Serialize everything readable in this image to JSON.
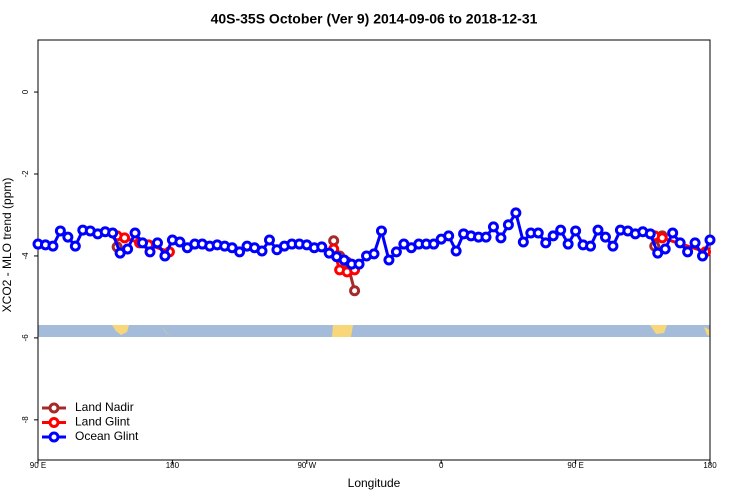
{
  "chart_data": {
    "type": "line",
    "title": "40S-35S October (Ver 9)   2014-09-06 to 2018-12-31",
    "xlabel": "Longitude",
    "ylabel": "XCO2 - MLO trend (ppm)",
    "xlim": [
      90,
      540
    ],
    "ylim": [
      -8.98,
      1.27
    ],
    "xticks": [
      {
        "value": 90,
        "label": "90 E"
      },
      {
        "value": 180,
        "label": "180"
      },
      {
        "value": 270,
        "label": "90 W"
      },
      {
        "value": 360,
        "label": "0"
      },
      {
        "value": 450,
        "label": "90 E"
      },
      {
        "value": 540,
        "label": "180"
      }
    ],
    "yticks": [
      0,
      -2,
      -4,
      -6,
      -8
    ],
    "legend": "bottomleft",
    "series": [
      {
        "name": "Land Nadir",
        "color": "#a52a2a",
        "x": [
          143,
          200,
          288,
          292,
          297,
          302,
          400,
          503,
          508
        ],
        "values": [
          -3.78,
          null,
          -3.63,
          -4.0,
          -4.15,
          -4.85,
          null,
          -3.76,
          -3.51
        ]
      },
      {
        "name": "Land Glint",
        "color": "#ff0000",
        "x": [
          143,
          148,
          158,
          164,
          178,
          230,
          288,
          292,
          297,
          302,
          400,
          503,
          508,
          537
        ],
        "values": [
          -3.51,
          -3.56,
          -3.68,
          -3.73,
          -3.9,
          null,
          -3.83,
          -4.34,
          -4.39,
          -4.34,
          null,
          -3.51,
          -3.56,
          -3.9
        ]
      },
      {
        "name": "Ocean Glint",
        "color": "#0000ff",
        "x": [
          90,
          95,
          100,
          105,
          110,
          115,
          120,
          125,
          130,
          135,
          140,
          145,
          150,
          155,
          160,
          165,
          170,
          175,
          180,
          185,
          190,
          195,
          200,
          205,
          210,
          215,
          220,
          225,
          230,
          235,
          240,
          245,
          250,
          255,
          260,
          265,
          270,
          275,
          280,
          285,
          290,
          295,
          300,
          305,
          310,
          315,
          320,
          325,
          330,
          335,
          340,
          345,
          350,
          355,
          360,
          365,
          370,
          375,
          380,
          385,
          390,
          395,
          400,
          405,
          410,
          415,
          420,
          425,
          430,
          435,
          440,
          445,
          450,
          455,
          460,
          465,
          470,
          475,
          480,
          485,
          490,
          495,
          500,
          505,
          510,
          515,
          520,
          525,
          530,
          535,
          540
        ],
        "values": [
          -3.71,
          -3.73,
          -3.76,
          -3.39,
          -3.54,
          -3.76,
          -3.37,
          -3.39,
          -3.46,
          -3.41,
          -3.44,
          -3.93,
          -3.83,
          -3.44,
          -3.68,
          -3.9,
          -3.68,
          -4.0,
          -3.61,
          -3.66,
          -3.8,
          -3.71,
          -3.71,
          -3.76,
          -3.73,
          -3.76,
          -3.8,
          -3.9,
          -3.76,
          -3.8,
          -3.88,
          -3.61,
          -3.85,
          -3.76,
          -3.71,
          -3.71,
          -3.73,
          -3.8,
          -3.78,
          -3.93,
          -4.02,
          -4.1,
          -4.2,
          -4.2,
          -4.0,
          -3.95,
          -3.39,
          -4.1,
          -3.9,
          -3.71,
          -3.8,
          -3.71,
          -3.71,
          -3.71,
          -3.59,
          -3.51,
          -3.88,
          -3.46,
          -3.51,
          -3.54,
          -3.54,
          -3.29,
          -3.56,
          -3.24,
          -2.95,
          -3.66,
          -3.44,
          -3.44,
          -3.68,
          -3.51,
          -3.37,
          -3.71,
          -3.39,
          -3.73,
          -3.76,
          -3.37,
          -3.54,
          -3.76,
          -3.37,
          -3.39,
          -3.46,
          -3.41,
          -3.46,
          -3.93,
          -3.83,
          -3.44,
          -3.68,
          -3.9,
          -3.68,
          -4.0,
          -3.61
        ]
      }
    ]
  }
}
